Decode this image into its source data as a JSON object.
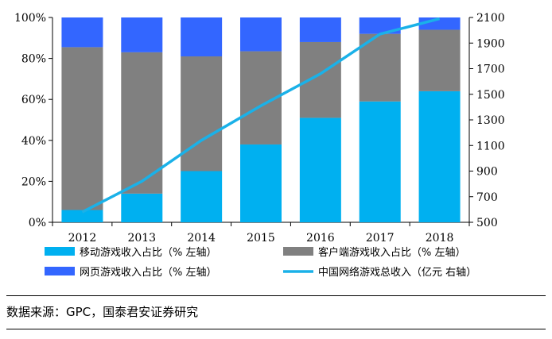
{
  "chart_data": {
    "type": "bar",
    "stacked": true,
    "categories": [
      "2012",
      "2013",
      "2014",
      "2015",
      "2016",
      "2017",
      "2018"
    ],
    "series": [
      {
        "name": "移动游戏收入占比（% 左轴）",
        "axis": "left",
        "color": "#00B0F0",
        "values": [
          6,
          14,
          25,
          38,
          51,
          59,
          64
        ]
      },
      {
        "name": "客户端游戏收入占比（% 左轴）",
        "axis": "left",
        "color": "#808080",
        "values": [
          79.5,
          69,
          56,
          45.5,
          37,
          33,
          30
        ]
      },
      {
        "name": "网页游戏收入占比（% 左轴）",
        "axis": "left",
        "color": "#3366FF",
        "values": [
          14.5,
          17,
          19,
          16.5,
          12,
          8,
          6
        ]
      },
      {
        "name": "中国网络游戏总收入（亿元 右轴）",
        "axis": "right",
        "type": "line",
        "color": "#1AB1E8",
        "values": [
          580,
          820,
          1140,
          1410,
          1660,
          1970,
          2090
        ]
      }
    ],
    "left_axis": {
      "ylim": [
        0,
        100
      ],
      "ticks": [
        "0%",
        "20%",
        "40%",
        "60%",
        "80%",
        "100%"
      ]
    },
    "right_axis": {
      "ylim": [
        500,
        2100
      ],
      "ticks": [
        "500",
        "700",
        "900",
        "1100",
        "1300",
        "1500",
        "1700",
        "1900",
        "2100"
      ]
    },
    "legend_placement": "bottom",
    "grid": false
  },
  "source_text": "数据来源：GPC，国泰君安证券研究"
}
